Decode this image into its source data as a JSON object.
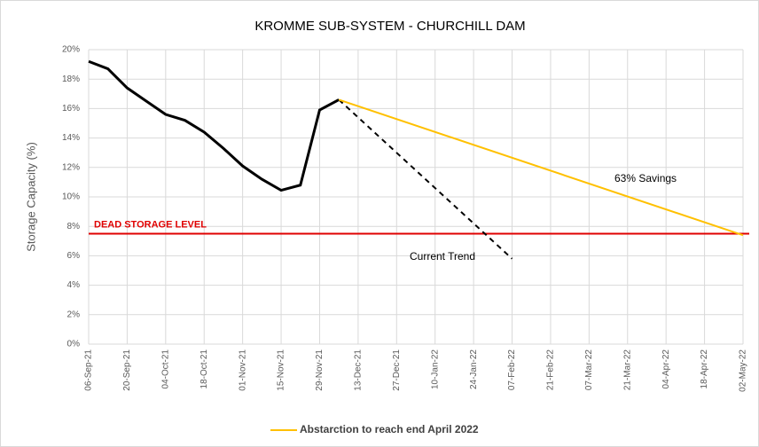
{
  "chart_data": {
    "type": "line",
    "title": "KROMME SUB-SYSTEM - CHURCHILL DAM",
    "y_label": "Storage Capacity (%)",
    "xlim": [
      0,
      238
    ],
    "xticks": [
      {
        "value": 0,
        "label": "06-Sep-21"
      },
      {
        "value": 14,
        "label": "20-Sep-21"
      },
      {
        "value": 28,
        "label": "04-Oct-21"
      },
      {
        "value": 42,
        "label": "18-Oct-21"
      },
      {
        "value": 56,
        "label": "01-Nov-21"
      },
      {
        "value": 70,
        "label": "15-Nov-21"
      },
      {
        "value": 84,
        "label": "29-Nov-21"
      },
      {
        "value": 98,
        "label": "13-Dec-21"
      },
      {
        "value": 112,
        "label": "27-Dec-21"
      },
      {
        "value": 126,
        "label": "10-Jan-22"
      },
      {
        "value": 140,
        "label": "24-Jan-22"
      },
      {
        "value": 154,
        "label": "07-Feb-22"
      },
      {
        "value": 168,
        "label": "21-Feb-22"
      },
      {
        "value": 182,
        "label": "07-Mar-22"
      },
      {
        "value": 196,
        "label": "21-Mar-22"
      },
      {
        "value": 210,
        "label": "04-Apr-22"
      },
      {
        "value": 224,
        "label": "18-Apr-22"
      },
      {
        "value": 238,
        "label": "02-May-22"
      }
    ],
    "ylim": [
      0,
      20
    ],
    "yticks": [
      {
        "value": 0,
        "label": "0%"
      },
      {
        "value": 2,
        "label": "2%"
      },
      {
        "value": 4,
        "label": "4%"
      },
      {
        "value": 6,
        "label": "6%"
      },
      {
        "value": 8,
        "label": "8%"
      },
      {
        "value": 10,
        "label": "10%"
      },
      {
        "value": 12,
        "label": "12%"
      },
      {
        "value": 14,
        "label": "14%"
      },
      {
        "value": 16,
        "label": "16%"
      },
      {
        "value": 18,
        "label": "18%"
      },
      {
        "value": 20,
        "label": "20%"
      }
    ],
    "grid": true,
    "series": [
      {
        "color": "#000000",
        "dash": false,
        "width": 3,
        "x": [
          0,
          7,
          14,
          21,
          28,
          35,
          42,
          49,
          56,
          63,
          70,
          77,
          84,
          91
        ],
        "values": [
          19.2,
          18.7,
          17.4,
          16.5,
          15.6,
          15.2,
          14.4,
          13.3,
          12.1,
          11.2,
          10.45,
          10.8,
          15.9,
          16.6
        ]
      },
      {
        "color": "#000000",
        "dash": true,
        "width": 2,
        "x": [
          91,
          154
        ],
        "values": [
          16.6,
          5.8
        ]
      },
      {
        "name": "Abstarction to reach end April 2022",
        "color": "#ffc000",
        "dash": false,
        "width": 2,
        "x": [
          91,
          238
        ],
        "values": [
          16.6,
          7.4
        ]
      }
    ],
    "reference_line": {
      "label": "DEAD STORAGE LEVEL",
      "value": 7.5,
      "color": "#e00000"
    },
    "annotations": [
      {
        "text": "Current Trend"
      },
      {
        "text": "63% Savings"
      }
    ],
    "legend": "bottom"
  }
}
